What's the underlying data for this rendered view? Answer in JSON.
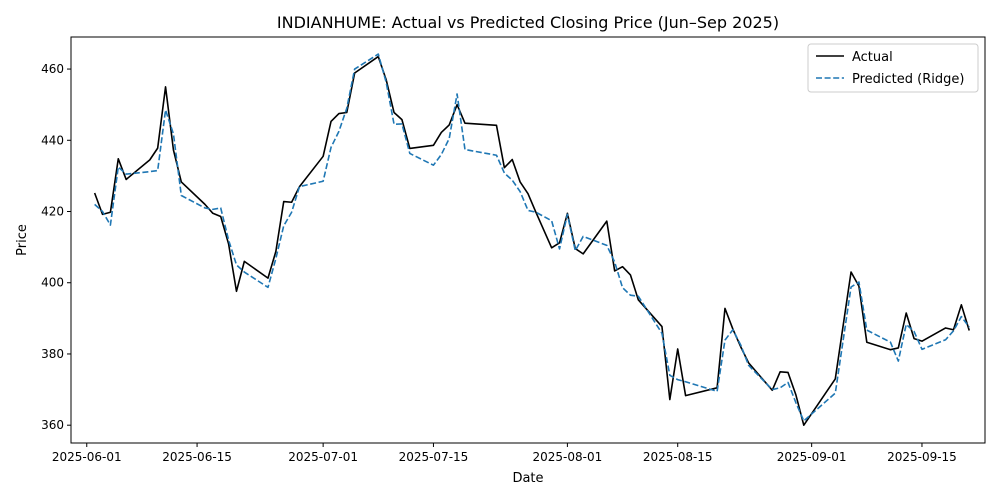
{
  "chart_data": {
    "type": "line",
    "title": "INDIANHUME: Actual vs Predicted Closing Price (Jun–Sep 2025)",
    "xlabel": "Date",
    "ylabel": "Price",
    "xlim": [
      "2025-05-30",
      "2025-09-23"
    ],
    "ylim": [
      355,
      469
    ],
    "x_ticks": [
      "2025-06-01",
      "2025-06-15",
      "2025-07-01",
      "2025-07-15",
      "2025-08-01",
      "2025-08-15",
      "2025-09-01",
      "2025-09-15"
    ],
    "y_ticks": [
      360,
      380,
      400,
      420,
      440,
      460
    ],
    "grid": false,
    "legend_position": "top-right",
    "series": [
      {
        "name": "Actual",
        "color": "#000000",
        "style": "solid",
        "points": [
          [
            "2025-06-02",
            425.2
          ],
          [
            "2025-06-03",
            419.2
          ],
          [
            "2025-06-04",
            419.8
          ],
          [
            "2025-06-05",
            434.8
          ],
          [
            "2025-06-06",
            429.0
          ],
          [
            "2025-06-09",
            434.5
          ],
          [
            "2025-06-10",
            437.8
          ],
          [
            "2025-06-11",
            455.0
          ],
          [
            "2025-06-12",
            437.3
          ],
          [
            "2025-06-13",
            428.3
          ],
          [
            "2025-06-16",
            422.0
          ],
          [
            "2025-06-17",
            419.5
          ],
          [
            "2025-06-18",
            418.6
          ],
          [
            "2025-06-19",
            410.9
          ],
          [
            "2025-06-20",
            397.6
          ],
          [
            "2025-06-21",
            406.0
          ],
          [
            "2025-06-24",
            401.3
          ],
          [
            "2025-06-25",
            408.8
          ],
          [
            "2025-06-26",
            422.8
          ],
          [
            "2025-06-27",
            422.6
          ],
          [
            "2025-06-28",
            427.0
          ],
          [
            "2025-07-01",
            435.5
          ],
          [
            "2025-07-02",
            445.3
          ],
          [
            "2025-07-03",
            447.5
          ],
          [
            "2025-07-04",
            447.8
          ],
          [
            "2025-07-05",
            458.9
          ],
          [
            "2025-07-08",
            463.5
          ],
          [
            "2025-07-09",
            457.0
          ],
          [
            "2025-07-10",
            447.8
          ],
          [
            "2025-07-11",
            445.8
          ],
          [
            "2025-07-12",
            437.7
          ],
          [
            "2025-07-15",
            438.6
          ],
          [
            "2025-07-16",
            442.2
          ],
          [
            "2025-07-17",
            444.3
          ],
          [
            "2025-07-18",
            450.0
          ],
          [
            "2025-07-19",
            444.8
          ],
          [
            "2025-07-23",
            444.2
          ],
          [
            "2025-07-24",
            432.3
          ],
          [
            "2025-07-25",
            434.6
          ],
          [
            "2025-07-26",
            428.3
          ],
          [
            "2025-07-27",
            425.0
          ],
          [
            "2025-07-28",
            419.8
          ],
          [
            "2025-07-30",
            409.8
          ],
          [
            "2025-07-31",
            411.2
          ],
          [
            "2025-08-01",
            419.5
          ],
          [
            "2025-08-02",
            409.6
          ],
          [
            "2025-08-03",
            408.1
          ],
          [
            "2025-08-06",
            417.3
          ],
          [
            "2025-08-07",
            403.3
          ],
          [
            "2025-08-08",
            404.5
          ],
          [
            "2025-08-09",
            402.2
          ],
          [
            "2025-08-10",
            395.2
          ],
          [
            "2025-08-13",
            387.7
          ],
          [
            "2025-08-14",
            367.2
          ],
          [
            "2025-08-15",
            381.4
          ],
          [
            "2025-08-16",
            368.3
          ],
          [
            "2025-08-20",
            370.5
          ],
          [
            "2025-08-21",
            392.8
          ],
          [
            "2025-08-22",
            387.0
          ],
          [
            "2025-08-23",
            382.0
          ],
          [
            "2025-08-24",
            377.5
          ],
          [
            "2025-08-27",
            369.8
          ],
          [
            "2025-08-28",
            375.0
          ],
          [
            "2025-08-29",
            374.8
          ],
          [
            "2025-08-30",
            368.5
          ],
          [
            "2025-08-31",
            360.0
          ],
          [
            "2025-09-04",
            373.0
          ],
          [
            "2025-09-06",
            403.0
          ],
          [
            "2025-09-07",
            399.0
          ],
          [
            "2025-09-08",
            383.3
          ],
          [
            "2025-09-11",
            381.2
          ],
          [
            "2025-09-12",
            381.7
          ],
          [
            "2025-09-13",
            391.5
          ],
          [
            "2025-09-14",
            384.3
          ],
          [
            "2025-09-15",
            383.6
          ],
          [
            "2025-09-18",
            387.3
          ],
          [
            "2025-09-19",
            386.8
          ],
          [
            "2025-09-20",
            393.8
          ],
          [
            "2025-09-21",
            386.6
          ]
        ]
      },
      {
        "name": "Predicted (Ridge)",
        "color": "#1f77b4",
        "style": "dashed",
        "points": [
          [
            "2025-06-02",
            422.0
          ],
          [
            "2025-06-03",
            420.0
          ],
          [
            "2025-06-04",
            416.2
          ],
          [
            "2025-06-05",
            432.5
          ],
          [
            "2025-06-06",
            430.5
          ],
          [
            "2025-06-09",
            431.2
          ],
          [
            "2025-06-10",
            431.5
          ],
          [
            "2025-06-11",
            448.5
          ],
          [
            "2025-06-12",
            441.8
          ],
          [
            "2025-06-13",
            424.5
          ],
          [
            "2025-06-16",
            421.0
          ],
          [
            "2025-06-17",
            420.6
          ],
          [
            "2025-06-18",
            421.0
          ],
          [
            "2025-06-19",
            412.0
          ],
          [
            "2025-06-20",
            405.0
          ],
          [
            "2025-06-21",
            403.0
          ],
          [
            "2025-06-24",
            398.7
          ],
          [
            "2025-06-25",
            406.8
          ],
          [
            "2025-06-26",
            416.0
          ],
          [
            "2025-06-27",
            419.8
          ],
          [
            "2025-06-28",
            427.0
          ],
          [
            "2025-07-01",
            428.5
          ],
          [
            "2025-07-02",
            438.0
          ],
          [
            "2025-07-03",
            442.5
          ],
          [
            "2025-07-04",
            449.0
          ],
          [
            "2025-07-05",
            460.0
          ],
          [
            "2025-07-08",
            464.2
          ],
          [
            "2025-07-09",
            456.3
          ],
          [
            "2025-07-10",
            444.5
          ],
          [
            "2025-07-11",
            444.6
          ],
          [
            "2025-07-12",
            436.3
          ],
          [
            "2025-07-15",
            433.0
          ],
          [
            "2025-07-16",
            436.0
          ],
          [
            "2025-07-17",
            440.5
          ],
          [
            "2025-07-18",
            453.0
          ],
          [
            "2025-07-19",
            437.4
          ],
          [
            "2025-07-23",
            435.8
          ],
          [
            "2025-07-24",
            430.8
          ],
          [
            "2025-07-25",
            428.8
          ],
          [
            "2025-07-26",
            425.6
          ],
          [
            "2025-07-27",
            420.3
          ],
          [
            "2025-07-28",
            419.8
          ],
          [
            "2025-07-30",
            417.4
          ],
          [
            "2025-07-31",
            409.5
          ],
          [
            "2025-08-01",
            419.2
          ],
          [
            "2025-08-02",
            409.0
          ],
          [
            "2025-08-03",
            413.0
          ],
          [
            "2025-08-06",
            410.5
          ],
          [
            "2025-08-07",
            405.8
          ],
          [
            "2025-08-08",
            398.6
          ],
          [
            "2025-08-09",
            396.5
          ],
          [
            "2025-08-10",
            396.2
          ],
          [
            "2025-08-13",
            385.8
          ],
          [
            "2025-08-14",
            374.0
          ],
          [
            "2025-08-15",
            372.8
          ],
          [
            "2025-08-16",
            372.2
          ],
          [
            "2025-08-20",
            369.5
          ],
          [
            "2025-08-21",
            383.9
          ],
          [
            "2025-08-22",
            386.8
          ],
          [
            "2025-08-23",
            382.5
          ],
          [
            "2025-08-24",
            376.8
          ],
          [
            "2025-08-27",
            370.0
          ],
          [
            "2025-08-28",
            370.5
          ],
          [
            "2025-08-29",
            372.0
          ],
          [
            "2025-08-30",
            366.3
          ],
          [
            "2025-08-31",
            361.2
          ],
          [
            "2025-09-04",
            369.0
          ],
          [
            "2025-09-06",
            398.8
          ],
          [
            "2025-09-07",
            400.2
          ],
          [
            "2025-09-08",
            386.7
          ],
          [
            "2025-09-11",
            383.3
          ],
          [
            "2025-09-12",
            378.0
          ],
          [
            "2025-09-13",
            388.3
          ],
          [
            "2025-09-14",
            386.3
          ],
          [
            "2025-09-15",
            381.3
          ],
          [
            "2025-09-18",
            384.0
          ],
          [
            "2025-09-19",
            386.5
          ],
          [
            "2025-09-20",
            390.5
          ],
          [
            "2025-09-21",
            387.5
          ]
        ]
      }
    ]
  }
}
